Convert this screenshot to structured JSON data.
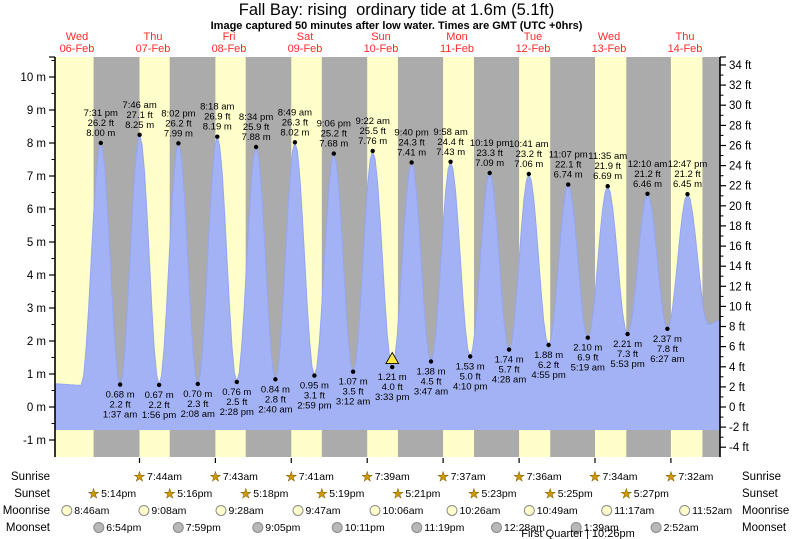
{
  "header": {
    "title": "Fall Bay: rising  ordinary tide at 1.6m (5.1ft)",
    "subtitle": "Image captured 50 minutes after low water. Times are GMT (UTC +0hrs)"
  },
  "colors": {
    "background": "#ffffff",
    "day_band": "#ffffcc",
    "night_band": "#ababab",
    "tide_fill": "#a3b2f5",
    "tide_stroke": "#94a6ef",
    "day_label": "#ff2a2a",
    "text": "#000000",
    "sun_icon": "#cf9a00",
    "sun_icon_edge": "#7c5c00",
    "moonrise_fill": "#ffffcc",
    "moonset_fill": "#b8b8b8",
    "moon_edge": "#8a8a8a",
    "marker_fill": "#ffe93f"
  },
  "chart_data": {
    "type": "area",
    "title": "Fall Bay: rising  ordinary tide at 1.6m (5.1ft)",
    "x_range": "Wed 06-Feb to Thu 14-Feb",
    "grid": false,
    "legend": false,
    "ylim_m": [
      -1.5,
      10.6
    ],
    "ylim_ft": [
      -5,
      34.8
    ],
    "y_left_unit": "m",
    "y_right_unit": "ft",
    "y_left_ticks_m": [
      -1,
      0,
      1,
      2,
      3,
      4,
      5,
      6,
      7,
      8,
      9,
      10
    ],
    "y_right_ticks_ft": [
      -4,
      -2,
      0,
      2,
      4,
      6,
      8,
      10,
      12,
      14,
      16,
      18,
      20,
      22,
      24,
      26,
      28,
      30,
      32,
      34
    ],
    "days": [
      {
        "weekday": "Wed",
        "date": "06-Feb"
      },
      {
        "weekday": "Thu",
        "date": "07-Feb"
      },
      {
        "weekday": "Fri",
        "date": "08-Feb"
      },
      {
        "weekday": "Sat",
        "date": "09-Feb"
      },
      {
        "weekday": "Sun",
        "date": "10-Feb"
      },
      {
        "weekday": "Mon",
        "date": "11-Feb"
      },
      {
        "weekday": "Tue",
        "date": "12-Feb"
      },
      {
        "weekday": "Wed",
        "date": "13-Feb"
      },
      {
        "weekday": "Thu",
        "date": "14-Feb"
      }
    ],
    "events": [
      {
        "kind": "high",
        "day": 0,
        "time": "7:31 pm",
        "m": "8.00",
        "ft": "26.2"
      },
      {
        "kind": "low",
        "day": 1,
        "time": "1:37 am",
        "m": "0.68",
        "ft": "2.2"
      },
      {
        "kind": "high",
        "day": 1,
        "time": "7:46 am",
        "m": "8.25",
        "ft": "27.1"
      },
      {
        "kind": "low",
        "day": 1,
        "time": "1:56 pm",
        "m": "0.67",
        "ft": "2.2"
      },
      {
        "kind": "high",
        "day": 1,
        "time": "8:02 pm",
        "m": "7.99",
        "ft": "26.2"
      },
      {
        "kind": "low",
        "day": 2,
        "time": "2:08 am",
        "m": "0.70",
        "ft": "2.3"
      },
      {
        "kind": "high",
        "day": 2,
        "time": "8:18 am",
        "m": "8.19",
        "ft": "26.9"
      },
      {
        "kind": "low",
        "day": 2,
        "time": "2:28 pm",
        "m": "0.76",
        "ft": "2.5"
      },
      {
        "kind": "high",
        "day": 2,
        "time": "8:34 pm",
        "m": "7.88",
        "ft": "25.9"
      },
      {
        "kind": "low",
        "day": 3,
        "time": "2:40 am",
        "m": "0.84",
        "ft": "2.8"
      },
      {
        "kind": "high",
        "day": 3,
        "time": "8:49 am",
        "m": "8.02",
        "ft": "26.3"
      },
      {
        "kind": "low",
        "day": 3,
        "time": "2:59 pm",
        "m": "0.95",
        "ft": "3.1"
      },
      {
        "kind": "high",
        "day": 3,
        "time": "9:06 pm",
        "m": "7.68",
        "ft": "25.2"
      },
      {
        "kind": "low",
        "day": 4,
        "time": "3:12 am",
        "m": "1.07",
        "ft": "3.5"
      },
      {
        "kind": "high",
        "day": 4,
        "time": "9:22 am",
        "m": "7.76",
        "ft": "25.5"
      },
      {
        "kind": "low",
        "day": 4,
        "time": "3:33 pm",
        "m": "1.21",
        "ft": "4.0"
      },
      {
        "kind": "high",
        "day": 4,
        "time": "9:40 pm",
        "m": "7.41",
        "ft": "24.3"
      },
      {
        "kind": "low",
        "day": 5,
        "time": "3:47 am",
        "m": "1.38",
        "ft": "4.5"
      },
      {
        "kind": "high",
        "day": 5,
        "time": "9:58 am",
        "m": "7.43",
        "ft": "24.4"
      },
      {
        "kind": "low",
        "day": 5,
        "time": "4:10 pm",
        "m": "1.53",
        "ft": "5.0"
      },
      {
        "kind": "high",
        "day": 5,
        "time": "10:19 pm",
        "m": "7.09",
        "ft": "23.3"
      },
      {
        "kind": "low",
        "day": 6,
        "time": "4:28 am",
        "m": "1.74",
        "ft": "5.7"
      },
      {
        "kind": "high",
        "day": 6,
        "time": "10:41 am",
        "m": "7.06",
        "ft": "23.2"
      },
      {
        "kind": "low",
        "day": 6,
        "time": "4:55 pm",
        "m": "1.88",
        "ft": "6.2"
      },
      {
        "kind": "high",
        "day": 6,
        "time": "11:07 pm",
        "m": "6.74",
        "ft": "22.1"
      },
      {
        "kind": "low",
        "day": 7,
        "time": "5:19 am",
        "m": "2.10",
        "ft": "6.9"
      },
      {
        "kind": "high",
        "day": 7,
        "time": "11:35 am",
        "m": "6.69",
        "ft": "21.9"
      },
      {
        "kind": "low",
        "day": 7,
        "time": "5:53 pm",
        "m": "2.21",
        "ft": "7.3"
      },
      {
        "kind": "high",
        "day": 8,
        "time": "12:10 am",
        "m": "6.46",
        "ft": "21.2"
      },
      {
        "kind": "low",
        "day": 8,
        "time": "6:27 am",
        "m": "2.37",
        "ft": "7.8"
      },
      {
        "kind": "high",
        "day": 8,
        "time": "12:47 pm",
        "m": "6.45",
        "ft": "21.2"
      }
    ],
    "current_marker": {
      "event_index": 15,
      "shape": "triangle"
    }
  },
  "almanac": {
    "rows": [
      {
        "label": "Sunrise",
        "icon": "star",
        "entries": [
          {
            "day": 1,
            "time": "7:44am"
          },
          {
            "day": 2,
            "time": "7:43am"
          },
          {
            "day": 3,
            "time": "7:41am"
          },
          {
            "day": 4,
            "time": "7:39am"
          },
          {
            "day": 5,
            "time": "7:37am"
          },
          {
            "day": 6,
            "time": "7:36am"
          },
          {
            "day": 7,
            "time": "7:34am"
          },
          {
            "day": 8,
            "time": "7:32am"
          }
        ]
      },
      {
        "label": "Sunset",
        "icon": "star",
        "entries": [
          {
            "day": 0,
            "time": "5:14pm"
          },
          {
            "day": 1,
            "time": "5:16pm"
          },
          {
            "day": 2,
            "time": "5:18pm"
          },
          {
            "day": 3,
            "time": "5:19pm"
          },
          {
            "day": 4,
            "time": "5:21pm"
          },
          {
            "day": 5,
            "time": "5:23pm"
          },
          {
            "day": 6,
            "time": "5:25pm"
          },
          {
            "day": 7,
            "time": "5:27pm"
          }
        ]
      },
      {
        "label": "Moonrise",
        "icon": "moon-light",
        "entries": [
          {
            "day": 0,
            "time": "8:46am"
          },
          {
            "day": 1,
            "time": "9:08am"
          },
          {
            "day": 2,
            "time": "9:28am"
          },
          {
            "day": 3,
            "time": "9:47am"
          },
          {
            "day": 4,
            "time": "10:06am"
          },
          {
            "day": 5,
            "time": "10:26am"
          },
          {
            "day": 6,
            "time": "10:49am"
          },
          {
            "day": 7,
            "time": "11:17am"
          },
          {
            "day": 8,
            "time": "11:52am"
          }
        ]
      },
      {
        "label": "Moonset",
        "icon": "moon-dark",
        "entries": [
          {
            "day": 0,
            "time": "6:54pm"
          },
          {
            "day": 1,
            "time": "7:59pm"
          },
          {
            "day": 2,
            "time": "9:05pm"
          },
          {
            "day": 3,
            "time": "10:11pm"
          },
          {
            "day": 4,
            "time": "11:19pm"
          },
          {
            "day": 6,
            "time": "12:28am"
          },
          {
            "day": 7,
            "time": "1:39am"
          },
          {
            "day": 8,
            "time": "2:52am"
          }
        ]
      }
    ],
    "footer": "First Quarter | 10:26pm"
  }
}
